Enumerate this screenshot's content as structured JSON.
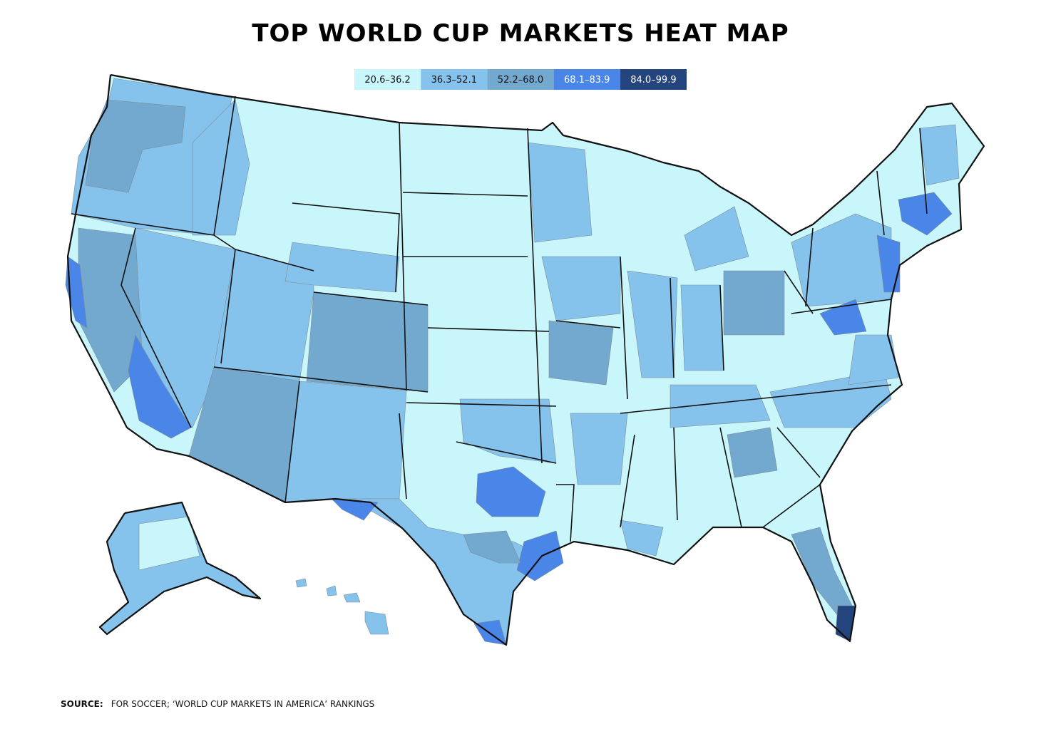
{
  "title": "TOP WORLD CUP MARKETS HEAT MAP",
  "legend": [
    {
      "label": "20.6–36.2",
      "color": "#c9f6fb"
    },
    {
      "label": "36.3–52.1",
      "color": "#86c3ec"
    },
    {
      "label": "52.2–68.0",
      "color": "#74a9cf"
    },
    {
      "label": "68.1–83.9",
      "color": "#4a86e8"
    },
    {
      "label": "84.0–99.9",
      "color": "#24447e"
    }
  ],
  "source": {
    "label": "SOURCE:",
    "text": "FOR SOCCER; ‘WORLD CUP MARKETS IN AMERICA’ RANKINGS"
  }
}
